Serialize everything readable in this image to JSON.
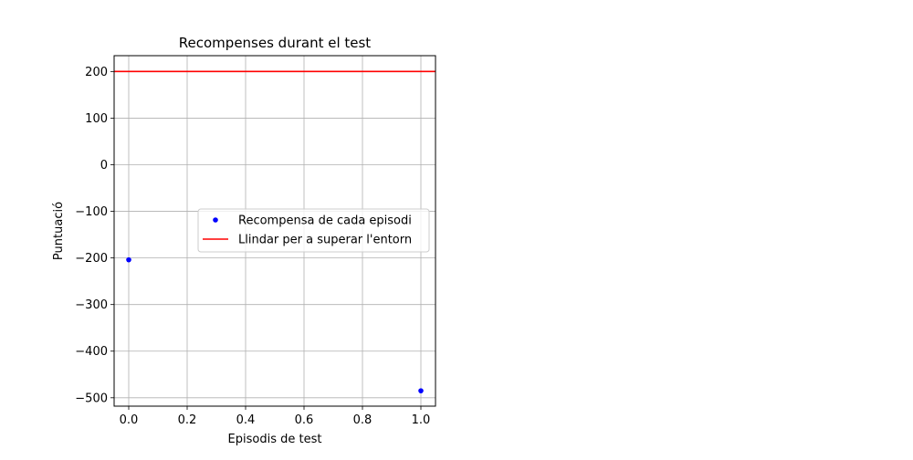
{
  "chart_data": {
    "type": "scatter",
    "title": "Recompenses durant el test",
    "xlabel": "Episodis de test",
    "ylabel": "Puntuació",
    "xlim": [
      -0.05,
      1.05
    ],
    "ylim": [
      -518,
      234
    ],
    "xticks": [
      0.0,
      0.2,
      0.4,
      0.6,
      0.8,
      1.0
    ],
    "xtick_labels": [
      "0.0",
      "0.2",
      "0.4",
      "0.6",
      "0.8",
      "1.0"
    ],
    "yticks": [
      200,
      100,
      0,
      -100,
      -200,
      -300,
      -400,
      -500
    ],
    "ytick_labels": [
      "200",
      "100",
      "0",
      "−100",
      "−200",
      "−300",
      "−400",
      "−500"
    ],
    "grid": true,
    "legend_position": "center-right",
    "series": [
      {
        "name": "Recompensa de cada episodi",
        "kind": "points",
        "color": "#0000ff",
        "x": [
          0,
          1
        ],
        "y": [
          -204,
          -485
        ]
      },
      {
        "name": "Llindar per a superar l'entorn",
        "kind": "hline",
        "color": "#ff0000",
        "y": 200
      }
    ]
  }
}
